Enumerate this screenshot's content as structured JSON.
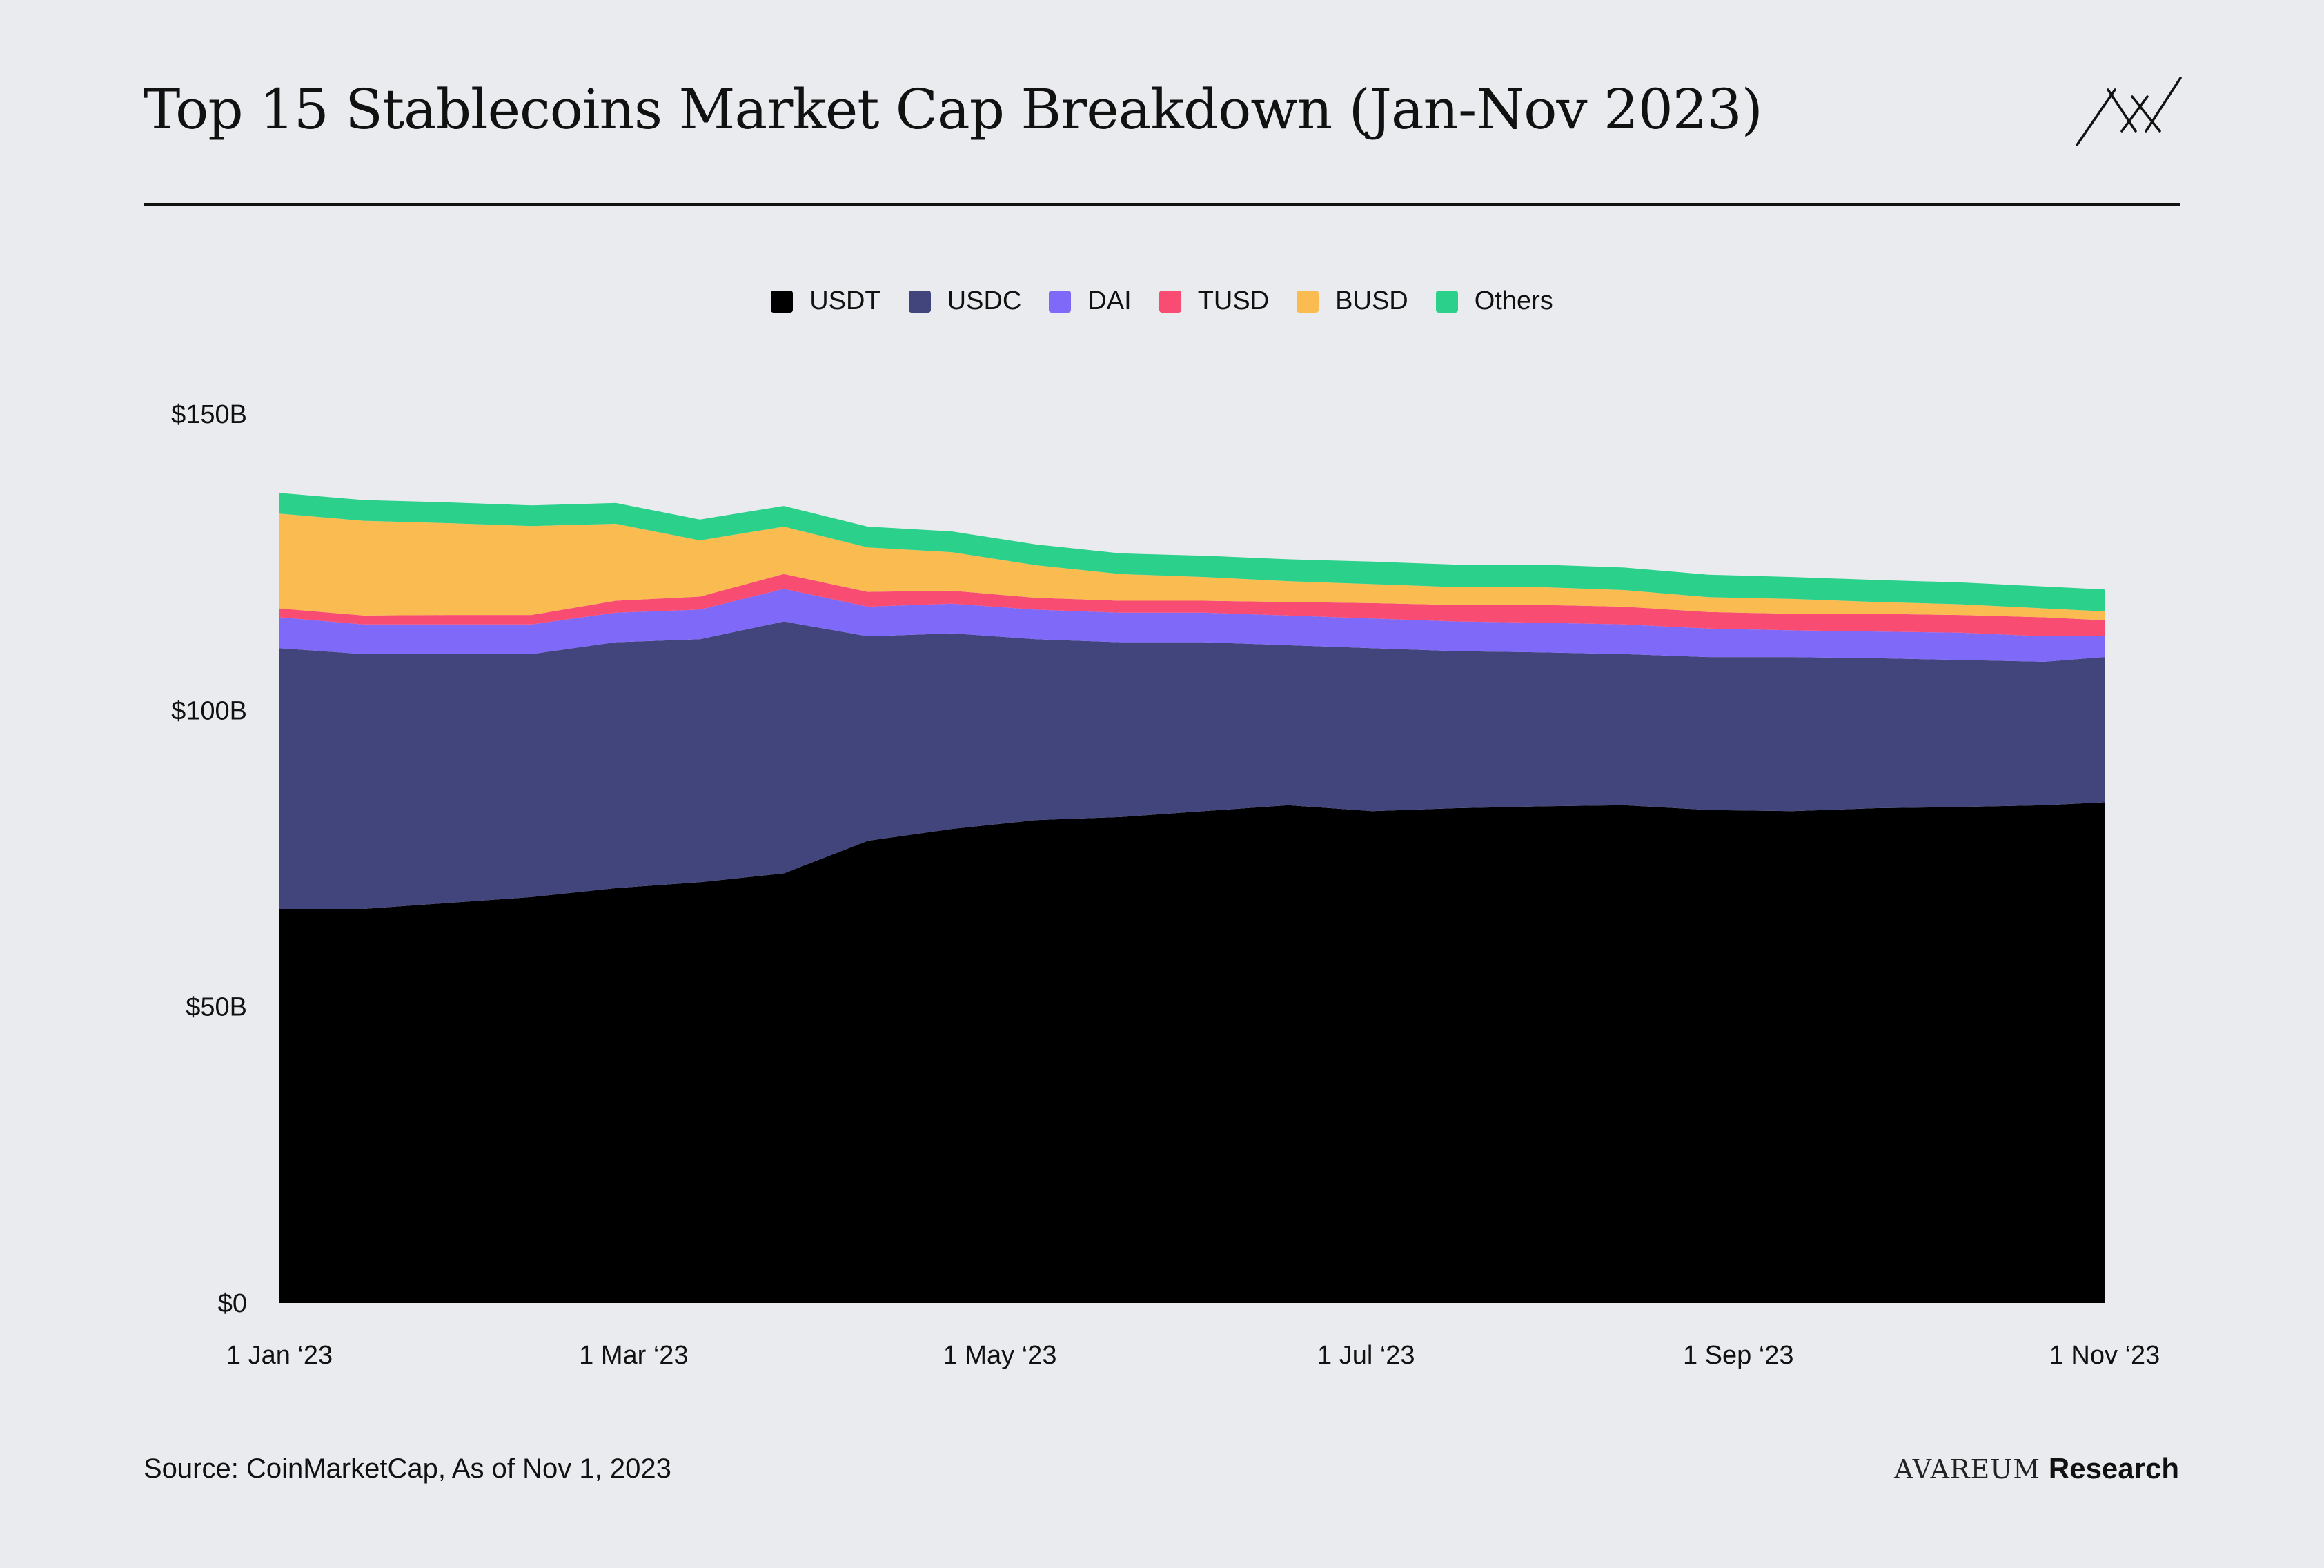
{
  "header": {
    "title": "Top 15 Stablecoins Market Cap Breakdown (Jan-Nov 2023)"
  },
  "footer": {
    "source": "Source: CoinMarketCap, As of Nov 1, 2023",
    "brand_name": "AVAREUM",
    "brand_suffix": "Research"
  },
  "chart_data": {
    "type": "area",
    "stacked": true,
    "title": "Top 15 Stablecoins Market Cap Breakdown (Jan-Nov 2023)",
    "xlabel": "",
    "ylabel": "",
    "ylim": [
      0,
      150
    ],
    "yticks": [
      0,
      50,
      100,
      150
    ],
    "ytick_labels": [
      "$0",
      "$50B",
      "$100B",
      "$150B"
    ],
    "xlim": [
      0,
      304
    ],
    "xticks": [
      0,
      59,
      120,
      181,
      243,
      304
    ],
    "xtick_labels": [
      "1 Jan ‘23",
      "1 Mar ‘23",
      "1 May ‘23",
      "1 Jul ‘23",
      "1 Sep ‘23",
      "1 Nov ‘23"
    ],
    "legend_position": "top-center",
    "x": [
      0,
      14,
      28,
      42,
      56,
      70,
      84,
      98,
      112,
      126,
      140,
      154,
      168,
      182,
      196,
      210,
      224,
      238,
      252,
      266,
      280,
      294,
      304
    ],
    "series": [
      {
        "name": "USDT",
        "color": "#000000",
        "values": [
          66.5,
          66.5,
          67.5,
          68.5,
          70.0,
          71.0,
          72.5,
          78.0,
          80.0,
          81.5,
          82.0,
          83.0,
          84.0,
          83.0,
          83.5,
          83.8,
          84.0,
          83.2,
          83.0,
          83.5,
          83.7,
          84.0,
          84.5
        ]
      },
      {
        "name": "USDC",
        "color": "#42447c",
        "values": [
          44.0,
          43.0,
          42.0,
          41.0,
          41.5,
          41.0,
          42.5,
          34.5,
          33.0,
          30.5,
          29.5,
          28.5,
          27.0,
          27.5,
          26.5,
          26.0,
          25.5,
          25.8,
          26.0,
          25.3,
          24.8,
          24.2,
          24.5
        ]
      },
      {
        "name": "DAI",
        "color": "#7f69f9",
        "values": [
          5.2,
          5.0,
          5.0,
          5.0,
          5.0,
          5.0,
          5.5,
          5.0,
          5.0,
          5.0,
          5.0,
          5.0,
          5.0,
          5.0,
          5.0,
          5.0,
          5.0,
          4.8,
          4.5,
          4.5,
          4.6,
          4.3,
          3.5
        ]
      },
      {
        "name": "TUSD",
        "color": "#f94c72",
        "values": [
          1.5,
          1.5,
          1.6,
          1.6,
          2.0,
          2.2,
          2.5,
          2.5,
          2.2,
          2.0,
          2.0,
          2.0,
          2.3,
          2.6,
          2.8,
          3.0,
          3.0,
          2.8,
          2.8,
          3.0,
          3.0,
          3.2,
          2.7
        ]
      },
      {
        "name": "BUSD",
        "color": "#fabc50",
        "values": [
          16.0,
          16.0,
          15.5,
          15.0,
          13.0,
          9.5,
          8.0,
          7.5,
          6.5,
          5.5,
          4.5,
          4.0,
          3.5,
          3.2,
          3.0,
          3.0,
          2.8,
          2.5,
          2.5,
          2.0,
          1.8,
          1.5,
          1.5
        ]
      },
      {
        "name": "Others",
        "color": "#2bd08b",
        "values": [
          3.5,
          3.5,
          3.5,
          3.5,
          3.5,
          3.5,
          3.5,
          3.5,
          3.5,
          3.5,
          3.5,
          3.6,
          3.7,
          3.8,
          3.8,
          3.8,
          3.8,
          3.8,
          3.7,
          3.7,
          3.7,
          3.7,
          3.7
        ]
      }
    ]
  }
}
